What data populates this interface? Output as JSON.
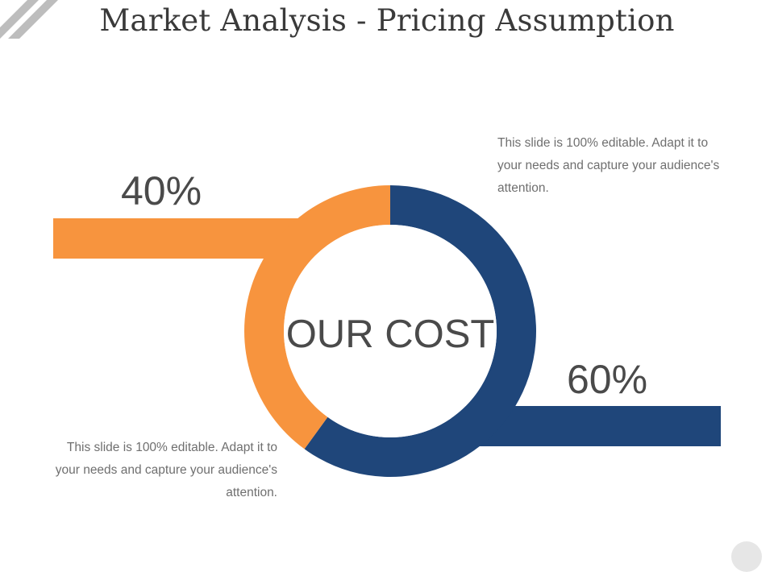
{
  "slide": {
    "title": "Market Analysis - Pricing Assumption",
    "center_label": "OUR COST"
  },
  "segments": [
    {
      "label": "40%",
      "percent": 40,
      "color": "#F7943E",
      "note": "This slide is 100% editable. Adapt it to your needs and  capture your audience's attention."
    },
    {
      "label": "60%",
      "percent": 60,
      "color": "#1F467A",
      "note": "This slide is 100% editable. Adapt it to your needs and  capture your audience's attention."
    }
  ],
  "decor": {
    "stripe_color": "#BDBDBD",
    "nav_dot_color": "#E6E6E6"
  }
}
